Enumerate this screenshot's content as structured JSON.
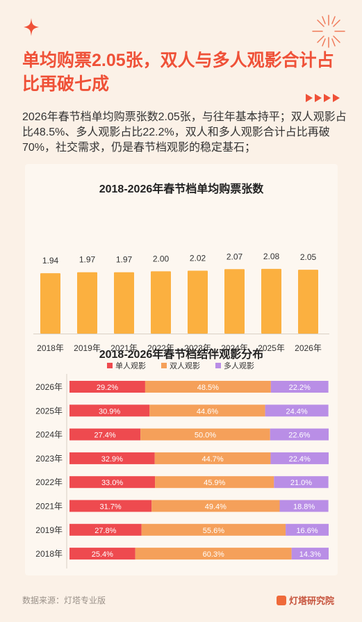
{
  "header": {
    "title": "单均购票2.05张，双人与多人观影合计占比再破七成",
    "description": "2026年春节档单均购票张数2.05张，与往年基本持平；双人观影占比48.5%、多人观影占比22.2%，双人和多人观影合计占比再破70%，社交需求，仍是春节档观影的稳定基石；"
  },
  "footer": {
    "source": "数据来源：灯塔专业版",
    "brand": "灯塔研究院"
  },
  "colors": {
    "accent": "#ef5138",
    "bar": "#fbb040",
    "single": "#ee4a4f",
    "double": "#f5a05a",
    "multi": "#b98ee6"
  },
  "chart_data": [
    {
      "type": "bar",
      "title": "2018-2026年春节档单均购票张数",
      "categories": [
        "2018年",
        "2019年",
        "2021年",
        "2022年",
        "2023年",
        "2024年",
        "2025年",
        "2026年"
      ],
      "values": [
        1.94,
        1.97,
        1.97,
        2.0,
        2.02,
        2.07,
        2.08,
        2.05
      ],
      "value_labels": [
        "1.94",
        "1.97",
        "1.97",
        "2.00",
        "2.02",
        "2.07",
        "2.08",
        "2.05"
      ],
      "xlabel": "",
      "ylabel": ""
    },
    {
      "type": "bar",
      "stacked": true,
      "orientation": "horizontal",
      "title": "2018-2026年春节档结伴观影分布",
      "categories": [
        "2026年",
        "2025年",
        "2024年",
        "2023年",
        "2022年",
        "2021年",
        "2019年",
        "2018年"
      ],
      "series": [
        {
          "name": "单人观影",
          "values": [
            29.2,
            30.9,
            27.4,
            32.9,
            33.0,
            31.7,
            27.8,
            25.4
          ],
          "labels": [
            "29.2%",
            "30.9%",
            "27.4%",
            "32.9%",
            "33.0%",
            "31.7%",
            "27.8%",
            "25.4%"
          ]
        },
        {
          "name": "双人观影",
          "values": [
            48.5,
            44.6,
            50.0,
            44.7,
            45.9,
            49.4,
            55.6,
            60.3
          ],
          "labels": [
            "48.5%",
            "44.6%",
            "50.0%",
            "44.7%",
            "45.9%",
            "49.4%",
            "55.6%",
            "60.3%"
          ]
        },
        {
          "name": "多人观影",
          "values": [
            22.2,
            24.4,
            22.6,
            22.4,
            21.0,
            18.8,
            16.6,
            14.3
          ],
          "labels": [
            "22.2%",
            "24.4%",
            "22.6%",
            "22.4%",
            "21.0%",
            "18.8%",
            "16.6%",
            "14.3%"
          ]
        }
      ],
      "legend": "top"
    }
  ]
}
